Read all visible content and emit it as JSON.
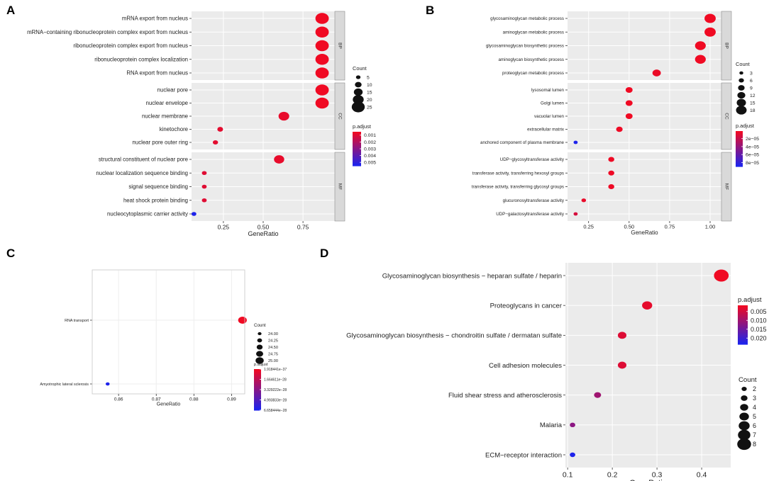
{
  "figure": {
    "panel_letters": [
      "A",
      "B",
      "C",
      "D"
    ]
  },
  "chart_data": [
    {
      "panel": "A",
      "type": "scatter",
      "subtype": "dotplot",
      "title": "",
      "xlabel": "GeneRatio",
      "ylabel": "",
      "xlim": [
        0.05,
        0.95
      ],
      "xticks": [
        "0.25",
        "0.50",
        "0.75"
      ],
      "xtick_values": [
        0.25,
        0.5,
        0.75
      ],
      "facets": [
        {
          "label": "BP",
          "terms": [
            {
              "term": "mRNA export from nucleus",
              "x": 0.87,
              "count": 24,
              "p": 0.0005
            },
            {
              "term": "mRNA−containing ribonucleoprotein complex export from nucleus",
              "x": 0.87,
              "count": 24,
              "p": 0.0005
            },
            {
              "term": "ribonucleoprotein complex export from nucleus",
              "x": 0.87,
              "count": 24,
              "p": 0.0005
            },
            {
              "term": "ribonucleoprotein complex localization",
              "x": 0.87,
              "count": 24,
              "p": 0.0005
            },
            {
              "term": "RNA export from nucleus",
              "x": 0.87,
              "count": 24,
              "p": 0.0005
            }
          ]
        },
        {
          "label": "CC",
          "terms": [
            {
              "term": "nuclear pore",
              "x": 0.87,
              "count": 24,
              "p": 0.0005
            },
            {
              "term": "nuclear envelope",
              "x": 0.87,
              "count": 24,
              "p": 0.0005
            },
            {
              "term": "nuclear membrane",
              "x": 0.63,
              "count": 18,
              "p": 0.0007
            },
            {
              "term": "kinetochore",
              "x": 0.23,
              "count": 7,
              "p": 0.0008
            },
            {
              "term": "nuclear pore outer ring",
              "x": 0.2,
              "count": 6,
              "p": 0.0008
            }
          ]
        },
        {
          "label": "MF",
          "terms": [
            {
              "term": "structural constituent of nuclear pore",
              "x": 0.6,
              "count": 17,
              "p": 0.0007
            },
            {
              "term": "nuclear localization sequence binding",
              "x": 0.13,
              "count": 4,
              "p": 0.0009
            },
            {
              "term": "signal sequence binding",
              "x": 0.13,
              "count": 4,
              "p": 0.0009
            },
            {
              "term": "heat shock protein binding",
              "x": 0.13,
              "count": 4,
              "p": 0.0009
            },
            {
              "term": "nucleocytoplasmic carrier activity",
              "x": 0.065,
              "count": 2,
              "p": 0.0055
            }
          ]
        }
      ],
      "legend_count": {
        "title": "Count",
        "values": [
          5,
          10,
          15,
          20,
          25
        ],
        "labels": [
          "5",
          "10",
          "15",
          "20",
          "25"
        ]
      },
      "legend_color": {
        "title": "p.adjust",
        "min": 0.0005,
        "max": 0.0055,
        "labels": [
          "0.001",
          "0.002",
          "0.003",
          "0.004",
          "0.005"
        ],
        "label_values": [
          0.001,
          0.002,
          0.003,
          0.004,
          0.005
        ]
      }
    },
    {
      "panel": "B",
      "type": "scatter",
      "subtype": "dotplot",
      "title": "",
      "xlabel": "GeneRatio",
      "ylabel": "",
      "xlim": [
        0.12,
        1.07
      ],
      "xticks": [
        "0.25",
        "0.50",
        "0.75",
        "1.00"
      ],
      "xtick_values": [
        0.25,
        0.5,
        0.75,
        1.0
      ],
      "facets": [
        {
          "label": "BP",
          "terms": [
            {
              "term": "glycosaminoglycan metabolic process",
              "x": 1.0,
              "count": 18,
              "p": 1e-06
            },
            {
              "term": "aminoglycan metabolic process",
              "x": 1.0,
              "count": 18,
              "p": 1e-06
            },
            {
              "term": "glycosaminoglycan biosynthetic process",
              "x": 0.94,
              "count": 17,
              "p": 1e-06
            },
            {
              "term": "aminoglycan biosynthetic process",
              "x": 0.94,
              "count": 17,
              "p": 1e-06
            },
            {
              "term": "proteoglycan metabolic process",
              "x": 0.67,
              "count": 12,
              "p": 3e-06
            }
          ]
        },
        {
          "label": "CC",
          "terms": [
            {
              "term": "lysosomal lumen",
              "x": 0.5,
              "count": 9,
              "p": 1e-06
            },
            {
              "term": "Golgi lumen",
              "x": 0.5,
              "count": 9,
              "p": 1e-06
            },
            {
              "term": "vacuolar lumen",
              "x": 0.5,
              "count": 9,
              "p": 1e-06
            },
            {
              "term": "extracellular matrix",
              "x": 0.44,
              "count": 8,
              "p": 2e-06
            },
            {
              "term": "anchored component of plasma membrane",
              "x": 0.17,
              "count": 3,
              "p": 9e-05
            }
          ]
        },
        {
          "label": "MF",
          "terms": [
            {
              "term": "UDP−glycosyltransferase activity",
              "x": 0.39,
              "count": 7,
              "p": 2e-06
            },
            {
              "term": "transferase activity, transferring hexosyl groups",
              "x": 0.39,
              "count": 7,
              "p": 2e-06
            },
            {
              "term": "transferase activity, transferring glycosyl groups",
              "x": 0.39,
              "count": 7,
              "p": 2e-06
            },
            {
              "term": "glucuronosyltransferase activity",
              "x": 0.22,
              "count": 4,
              "p": 4e-06
            },
            {
              "term": "UDP−galactosyltransferase activity",
              "x": 0.17,
              "count": 3,
              "p": 1.2e-05
            }
          ]
        }
      ],
      "legend_count": {
        "title": "Count",
        "values": [
          3,
          6,
          9,
          12,
          15,
          18
        ],
        "labels": [
          "3",
          "6",
          "9",
          "12",
          "15",
          "18"
        ]
      },
      "legend_color": {
        "title": "p.adjust",
        "min": 1e-06,
        "max": 9e-05,
        "labels": [
          "2e−05",
          "4e−05",
          "6e−05",
          "8e−05"
        ],
        "label_values": [
          2e-05,
          4e-05,
          6e-05,
          8e-05
        ]
      }
    },
    {
      "panel": "C",
      "type": "scatter",
      "subtype": "dotplot",
      "title": "",
      "xlabel": "GeneRatio",
      "ylabel": "",
      "xlim": [
        0.853,
        0.8935
      ],
      "xticks": [
        "0.86",
        "0.87",
        "0.88",
        "0.89"
      ],
      "xtick_values": [
        0.86,
        0.87,
        0.88,
        0.89
      ],
      "facets": [
        {
          "label": "",
          "terms": [
            {
              "term": "RNA transport",
              "x": 0.8929,
              "count": 25,
              "p": 1.918e-37
            },
            {
              "term": "Amyotrophic lateral sclerosis",
              "x": 0.8571,
              "count": 24,
              "p": 6.658e-28
            }
          ]
        }
      ],
      "legend_count": {
        "title": "Count",
        "values": [
          24.0,
          24.25,
          24.5,
          24.75,
          25.0
        ],
        "labels": [
          "24.00",
          "24.25",
          "24.50",
          "24.75",
          "25.00"
        ]
      },
      "legend_color": {
        "title": "p.adjust",
        "min": 1.918e-37,
        "max": 6.658e-28,
        "labels": [
          "1.918441e−37",
          "1.664611e−28",
          "3.329222e−28",
          "4.993833e−28",
          "6.658444e−28"
        ],
        "label_values": [
          1.918e-37,
          1.6646e-28,
          3.3292e-28,
          4.9938e-28,
          6.6584e-28
        ]
      }
    },
    {
      "panel": "D",
      "type": "scatter",
      "subtype": "dotplot",
      "title": "",
      "xlabel": "GeneRatio",
      "ylabel": "",
      "xlim": [
        0.095,
        0.465
      ],
      "xticks": [
        "0.1",
        "0.2",
        "0.3",
        "0.4"
      ],
      "xtick_values": [
        0.1,
        0.2,
        0.3,
        0.4
      ],
      "facets": [
        {
          "label": "",
          "terms": [
            {
              "term": "Glycosaminoglycan biosynthesis − heparan sulfate / heparin",
              "x": 0.444,
              "count": 8,
              "p": 0.0015
            },
            {
              "term": "Proteoglycans in cancer",
              "x": 0.278,
              "count": 5,
              "p": 0.0025
            },
            {
              "term": "Glycosaminoglycan biosynthesis − chondroitin sulfate / dermatan sulfate",
              "x": 0.222,
              "count": 4,
              "p": 0.0035
            },
            {
              "term": "Cell adhesion molecules",
              "x": 0.222,
              "count": 4,
              "p": 0.0035
            },
            {
              "term": "Fluid shear stress and atherosclerosis",
              "x": 0.167,
              "count": 3,
              "p": 0.01
            },
            {
              "term": "Malaria",
              "x": 0.111,
              "count": 2,
              "p": 0.012
            },
            {
              "term": "ECM−receptor interaction",
              "x": 0.111,
              "count": 2,
              "p": 0.0235
            }
          ]
        }
      ],
      "legend_count": {
        "title": "Count",
        "values": [
          2,
          3,
          4,
          5,
          6,
          7,
          8
        ],
        "labels": [
          "2",
          "3",
          "4",
          "5",
          "6",
          "7",
          "8"
        ]
      },
      "legend_color": {
        "title": "p.adjust",
        "min": 0.0015,
        "max": 0.0235,
        "labels": [
          "0.005",
          "0.010",
          "0.015",
          "0.020"
        ],
        "label_values": [
          0.005,
          0.01,
          0.015,
          0.02
        ]
      }
    }
  ]
}
